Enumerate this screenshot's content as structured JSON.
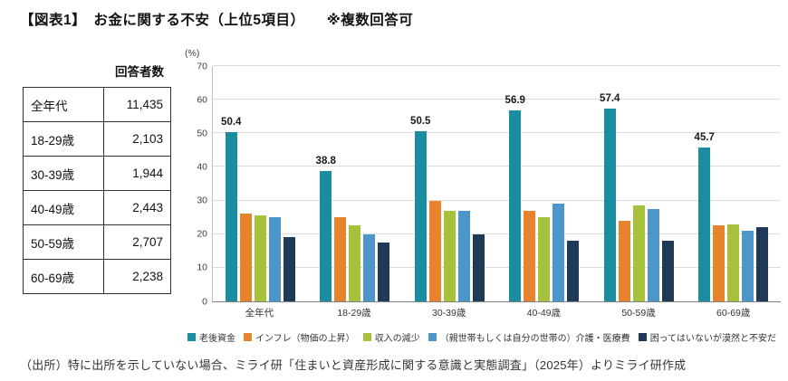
{
  "title": "【図表1】　お金に関する不安（上位5項目）　　※複数回答可",
  "table": {
    "header": "回答者数",
    "rows": [
      {
        "label": "全年代",
        "value": "11,435"
      },
      {
        "label": "18-29歳",
        "value": "2,103"
      },
      {
        "label": "30-39歳",
        "value": "1,944"
      },
      {
        "label": "40-49歳",
        "value": "2,443"
      },
      {
        "label": "50-59歳",
        "value": "2,707"
      },
      {
        "label": "60-69歳",
        "value": "2,238"
      }
    ]
  },
  "chart_data": {
    "type": "bar",
    "categories": [
      "全年代",
      "18-29歳",
      "30-39歳",
      "40-49歳",
      "50-59歳",
      "60-69歳"
    ],
    "series": [
      {
        "name": "老後資金",
        "color": "#1b8da0",
        "labeled": true,
        "values": [
          50.4,
          38.8,
          50.5,
          56.9,
          57.4,
          45.7
        ]
      },
      {
        "name": "インフレ（物価の上昇）",
        "color": "#e8832d",
        "values": [
          26.0,
          25.0,
          30.0,
          27.0,
          24.0,
          22.5
        ]
      },
      {
        "name": "収入の減少",
        "color": "#a6c23d",
        "values": [
          25.5,
          22.5,
          27.0,
          25.0,
          28.5,
          23.0
        ]
      },
      {
        "name": "（親世帯もしくは自分の世帯の）介護・医療費",
        "color": "#4c96c9",
        "values": [
          25.0,
          20.0,
          27.0,
          29.0,
          27.5,
          21.0
        ]
      },
      {
        "name": "困ってはいないが漠然と不安だ",
        "color": "#1e3a56",
        "values": [
          19.0,
          17.5,
          20.0,
          18.0,
          18.0,
          22.0
        ]
      }
    ],
    "ylabel_unit": "(%)",
    "ylim": [
      0,
      70
    ],
    "ytick_step": 10,
    "grid": true,
    "legend_position": "bottom"
  },
  "footer": "（出所）特に出所を示していない場合、ミライ研「住まいと資産形成に関する意識と実態調査」（2025年）よりミライ研作成"
}
